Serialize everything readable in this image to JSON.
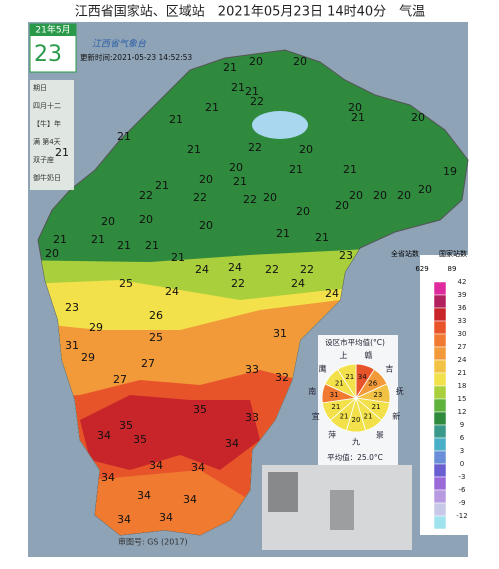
{
  "header": {
    "title": "江西省国家站、区域站　2021年05月23日 14时40分　气温"
  },
  "calendar": {
    "month": "21年5月",
    "day": "23",
    "lines": [
      "期日",
      "四月十二",
      "【牛】年",
      "满 第4天",
      "双子座",
      "御牛奶日"
    ]
  },
  "logo": "江西省气象台",
  "update_time": "更新时间:2021-05-23 14:52:53",
  "map": {
    "stations": [
      21,
      20,
      20,
      21,
      21,
      22,
      21,
      20,
      21,
      20,
      21,
      21,
      21,
      20,
      22,
      21,
      20,
      21,
      21,
      21,
      20,
      21,
      22,
      22,
      22,
      20,
      19,
      20,
      20,
      20,
      20,
      20,
      20,
      20,
      20,
      20,
      21,
      21,
      20,
      21,
      21,
      21,
      21,
      23,
      22,
      22,
      21,
      25,
      24,
      24,
      24,
      23,
      22,
      24,
      24,
      26,
      29,
      25,
      31,
      31,
      29,
      27,
      27,
      33,
      32,
      33,
      35,
      35,
      35,
      34,
      34,
      34,
      34,
      34,
      34,
      34,
      34,
      34
    ]
  },
  "legend": {
    "all_label": "全省站数",
    "national_label": "国家站数",
    "all_count": "629",
    "national_count": "89",
    "scale": [
      42,
      39,
      36,
      33,
      30,
      27,
      24,
      21,
      18,
      15,
      12,
      9,
      6,
      3,
      0,
      -3,
      -6,
      -9,
      -12
    ]
  },
  "inset": {
    "title": "设区市平均值(°C)",
    "cities": [
      "赣",
      "吉",
      "抚",
      "新",
      "景",
      "九",
      "萍",
      "宜",
      "南",
      "鹰",
      "上"
    ],
    "values": [
      34,
      26,
      23,
      21,
      21,
      20,
      21,
      21,
      31,
      21,
      21
    ],
    "average": "平均值：25.0°C"
  },
  "footer": "审图号: GS (2017)"
}
